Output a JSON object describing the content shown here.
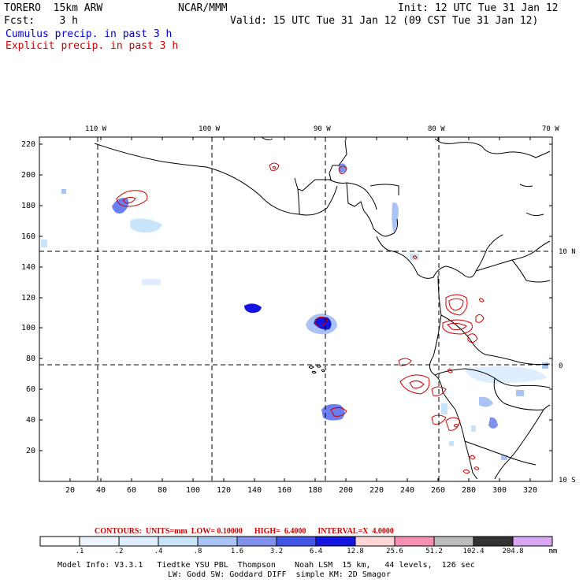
{
  "header": {
    "model": "TORERO  15km ARW",
    "org": "NCAR/MMM",
    "init": "Init: 12 UTC Tue 31 Jan 12",
    "fcst": "Fcst:    3 h",
    "valid": "Valid: 15 UTC Tue 31 Jan 12 (09 CST Tue 31 Jan 12)",
    "field1": "Cumulus precip. in past 3 h",
    "field2": "Explicit precip. in past 3 h"
  },
  "colors": {
    "field1": "#0000cc",
    "field2": "#cc0000",
    "coast": "#000000",
    "grid": "#000000"
  },
  "map": {
    "top_lon_labels": [
      "110 W",
      "100 W",
      "90 W",
      "80 W",
      "70 W"
    ],
    "right_lat_labels": [
      "10 N",
      "0",
      "10 S"
    ],
    "x_ticks": [
      "20",
      "40",
      "60",
      "80",
      "100",
      "120",
      "140",
      "160",
      "180",
      "200",
      "220",
      "240",
      "260",
      "280",
      "300",
      "320"
    ],
    "y_ticks": [
      "20",
      "40",
      "60",
      "80",
      "100",
      "120",
      "140",
      "160",
      "180",
      "200",
      "220"
    ]
  },
  "colorbar": {
    "contours_text": "CONTOURS:  UNITS=mm  LOW= 0.10000      HIGH=  6.4000      INTERVAL=X  4.0000",
    "labels": [
      ".1",
      ".2",
      ".4",
      ".8",
      "1.6",
      "3.2",
      "6.4",
      "12.8",
      "25.6",
      "51.2",
      "102.4",
      "204.8"
    ],
    "unit": "mm",
    "fills": [
      "#ffffff",
      "#eef5ff",
      "#dfeefe",
      "#c8e4fb",
      "#a9c3f5",
      "#7f91ea",
      "#4455e6",
      "#1414e0",
      "#ffd6d6",
      "#f58fb4",
      "#bcbcbc",
      "#323232",
      "#d9a7f4"
    ]
  },
  "footer": {
    "line1": "Model Info: V3.3.1   Tiedtke YSU PBL  Thompson    Noah LSM  15 km,   44 levels,  126 sec",
    "line2": "LW: Godd SW: Goddard DIFF  simple KM: 2D Smagor"
  }
}
